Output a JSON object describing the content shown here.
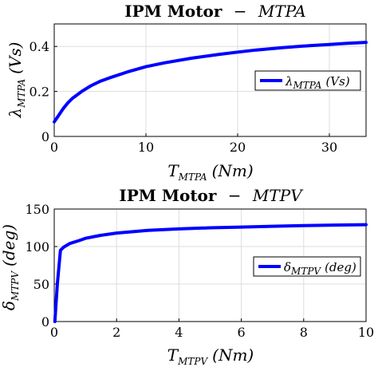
{
  "chart_data": [
    {
      "type": "line",
      "title_prefix": "IPM Motor",
      "title_dash": "−",
      "title_mode": "MTPA",
      "xlabel_main": "T",
      "xlabel_sub": "MTPA",
      "xlabel_unit": "(Nm)",
      "ylabel_main": "λ",
      "ylabel_sub": "MTPA",
      "ylabel_unit": "(Vs)",
      "xlim": [
        0,
        34
      ],
      "ylim": [
        0,
        0.5
      ],
      "xticks": [
        "0",
        "10",
        "20",
        "30"
      ],
      "xtick_values": [
        0,
        10,
        20,
        30
      ],
      "yticks": [
        "0",
        "0.2",
        "0.4"
      ],
      "ytick_values": [
        0,
        0.2,
        0.4
      ],
      "grid": true,
      "legend_placement": "center-right",
      "series": [
        {
          "name_main": "λ",
          "name_sub": "MTPA",
          "name_unit": "(Vs)",
          "color": "#0000ff",
          "x": [
            0,
            0.5,
            1,
            1.5,
            2,
            3,
            4,
            5,
            6,
            8,
            10,
            12,
            15,
            18,
            20,
            22,
            25,
            28,
            30,
            32,
            34
          ],
          "y": [
            0.065,
            0.095,
            0.125,
            0.15,
            0.17,
            0.2,
            0.225,
            0.245,
            0.26,
            0.287,
            0.31,
            0.327,
            0.348,
            0.365,
            0.375,
            0.384,
            0.395,
            0.404,
            0.409,
            0.414,
            0.418
          ]
        }
      ]
    },
    {
      "type": "line",
      "title_prefix": "IPM Motor",
      "title_dash": "−",
      "title_mode": "MTPV",
      "xlabel_main": "T",
      "xlabel_sub": "MTPV",
      "xlabel_unit": "(Nm)",
      "ylabel_main": "δ",
      "ylabel_sub": "MTPV",
      "ylabel_unit": "(deg)",
      "xlim": [
        0,
        10
      ],
      "ylim": [
        0,
        150
      ],
      "xticks": [
        "0",
        "2",
        "4",
        "6",
        "8",
        "10"
      ],
      "xtick_values": [
        0,
        2,
        4,
        6,
        8,
        10
      ],
      "yticks": [
        "0",
        "50",
        "100",
        "150"
      ],
      "ytick_values": [
        0,
        50,
        100,
        150
      ],
      "grid": true,
      "legend_placement": "center-right",
      "series": [
        {
          "name_main": "δ",
          "name_sub": "MTPV",
          "name_unit": "(deg)",
          "color": "#0000ff",
          "x": [
            0.02,
            0.1,
            0.2,
            0.3,
            0.5,
            0.8,
            1.0,
            1.5,
            2,
            3,
            4,
            5,
            6,
            7,
            8,
            9,
            10
          ],
          "y": [
            0,
            50,
            95,
            99,
            104,
            108,
            111,
            115,
            118,
            121.5,
            123.5,
            125,
            126,
            127,
            128,
            128.6,
            129.2
          ]
        }
      ]
    }
  ]
}
